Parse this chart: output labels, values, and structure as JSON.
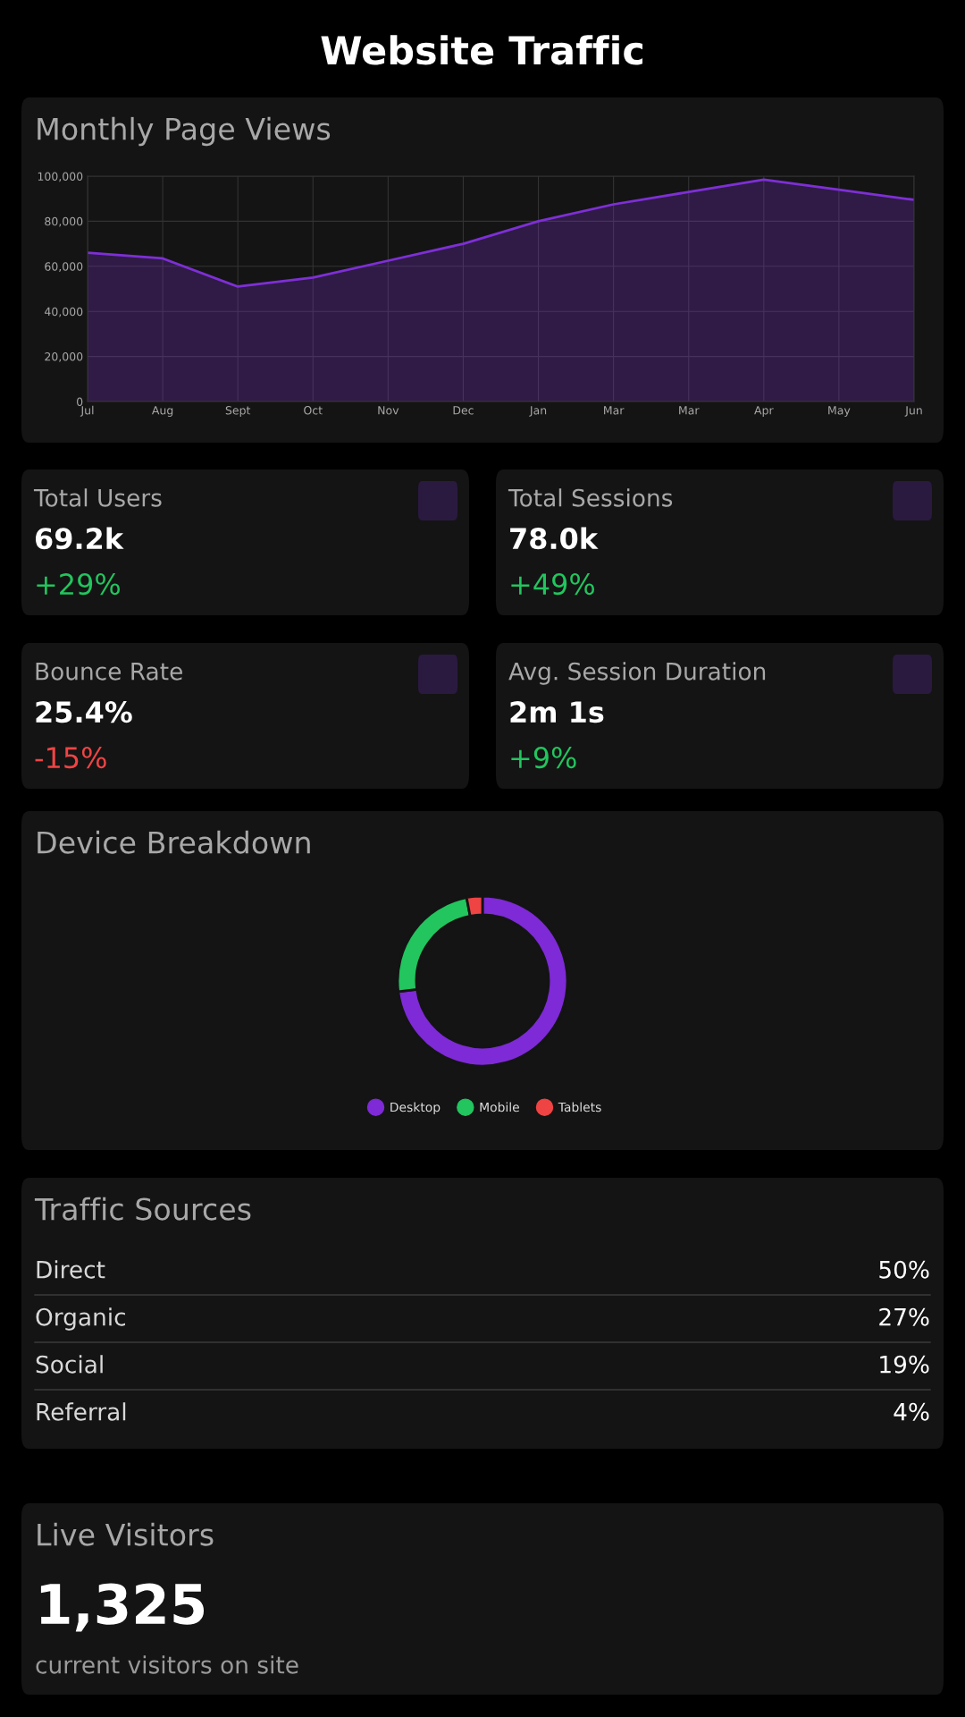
{
  "chart_data": [
    {
      "type": "other",
      "title": "Website Traffic"
    },
    {
      "type": "area",
      "title": "Monthly Page Views",
      "categories": [
        "Jul",
        "Aug",
        "Sept",
        "Oct",
        "Nov",
        "Dec",
        "Jan",
        "Mar",
        "Mar",
        "Apr",
        "May",
        "Jun"
      ],
      "series": [
        {
          "color": "#7e2fd6",
          "values": [
            66000,
            63500,
            51000,
            55000,
            62500,
            70000,
            80000,
            87500,
            93000,
            98500,
            94000,
            89500
          ]
        }
      ],
      "ylim": [
        0,
        100000
      ],
      "yticks": [
        0,
        {
          "value": 20000,
          "label": "20,000"
        },
        {
          "value": 40000,
          "label": "40,000"
        },
        {
          "value": 60000,
          "label": "60,000"
        },
        {
          "value": 80000,
          "label": "80,000"
        },
        {
          "value": 100000,
          "label": "100,000"
        }
      ],
      "grid": true,
      "marker": "none",
      "line_style": "solid"
    },
    {
      "type": "other",
      "title": "Total Users",
      "annotations": [
        "69.2k",
        "+29%"
      ],
      "colors": [
        "#ffffff",
        "#22c55e"
      ]
    },
    {
      "type": "other",
      "title": "Total Sessions",
      "annotations": [
        "78.0k",
        "+49%"
      ],
      "colors": [
        "#ffffff",
        "#22c55e"
      ]
    },
    {
      "type": "other",
      "title": "Bounce Rate",
      "annotations": [
        "25.4%",
        "-15%"
      ],
      "colors": [
        "#ffffff",
        "#ef4444"
      ]
    },
    {
      "type": "other",
      "title": "Avg. Session Duration",
      "annotations": [
        "2m 1s",
        "+9%"
      ],
      "colors": [
        "#ffffff",
        "#22c55e"
      ]
    },
    {
      "type": "donut",
      "title": "Device Breakdown",
      "categories": [
        "Desktop",
        "Mobile",
        "Tablets"
      ],
      "values": [
        73,
        24,
        3
      ],
      "colors": [
        "#7e2ad6",
        "#22c55e",
        "#ef4444"
      ],
      "legend": "bottom"
    },
    {
      "type": "other",
      "title": "Traffic Sources",
      "categories": [
        "Direct",
        "Organic",
        "Social",
        "Referral"
      ],
      "values": [
        50,
        27,
        19,
        4
      ],
      "value_labels": [
        "50%",
        "27%",
        "19%",
        "4%"
      ]
    },
    {
      "type": "other",
      "title": "Live Visitors",
      "annotations": [
        "1,325",
        "current visitors on site"
      ],
      "colors": [
        "#ffffff",
        "#9a9a9a"
      ]
    }
  ]
}
